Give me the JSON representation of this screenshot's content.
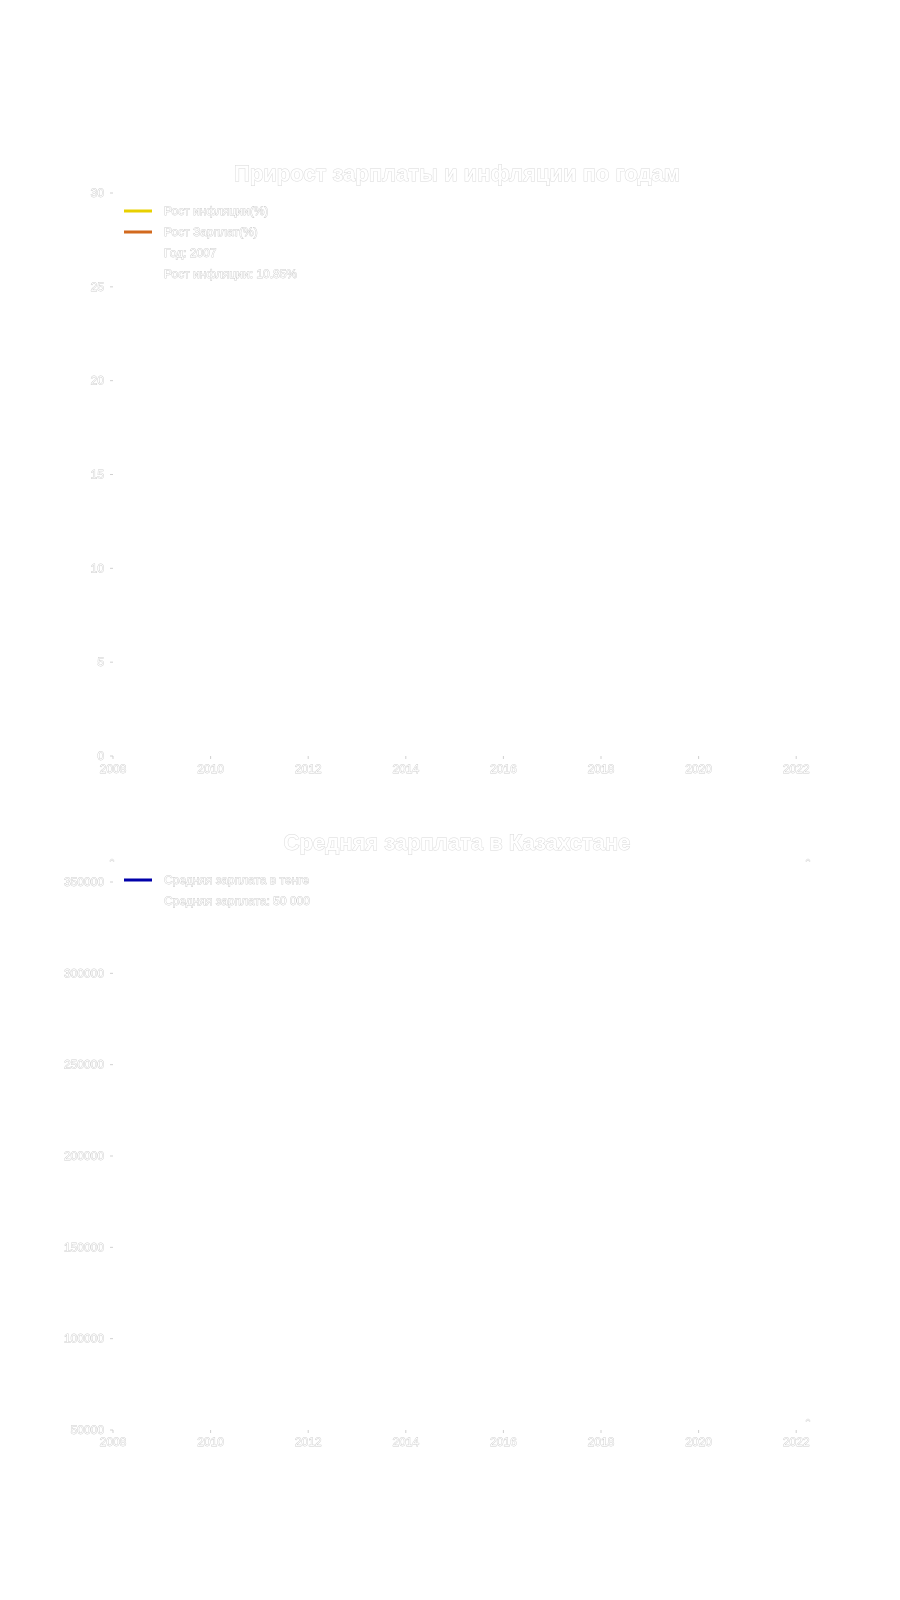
{
  "chart_data": [
    {
      "type": "line",
      "title": "Прирост зарплаты и инфляции по годам",
      "xlabel": "",
      "ylabel": "",
      "xlim": [
        2008,
        2023
      ],
      "ylim": [
        0,
        30
      ],
      "x_ticks": [
        "2008",
        "2010",
        "2012",
        "2014",
        "2016",
        "2018",
        "2020",
        "2022"
      ],
      "y_ticks": [
        "0",
        "5",
        "10",
        "15",
        "20",
        "25",
        "30"
      ],
      "series": [
        {
          "name": "Рост инфляции(%)",
          "color": "#e8d000",
          "values": []
        },
        {
          "name": "Рост Зарплат(%)",
          "color": "#d2691e",
          "values": []
        }
      ],
      "annotations": [
        "Год: 2007",
        "Рост инфляции: 10.85%"
      ],
      "legend": "top-left",
      "grid": false
    },
    {
      "type": "line",
      "title": "Средняя зарплата в Казахстане",
      "xlabel": "",
      "ylabel": "",
      "xlim": [
        2008,
        2023
      ],
      "ylim": [
        50000,
        350000
      ],
      "x_ticks": [
        "2008",
        "2010",
        "2012",
        "2014",
        "2016",
        "2018",
        "2020",
        "2022"
      ],
      "y_ticks": [
        "50000",
        "100000",
        "150000",
        "200000",
        "250000",
        "300000",
        "350000"
      ],
      "series": [
        {
          "name": "Средняя зарплата в тенге",
          "color": "#0000aa",
          "values": []
        }
      ],
      "annotations": [
        "Средняя зарплата: 50 000"
      ],
      "legend": "top-left",
      "grid": false
    }
  ]
}
